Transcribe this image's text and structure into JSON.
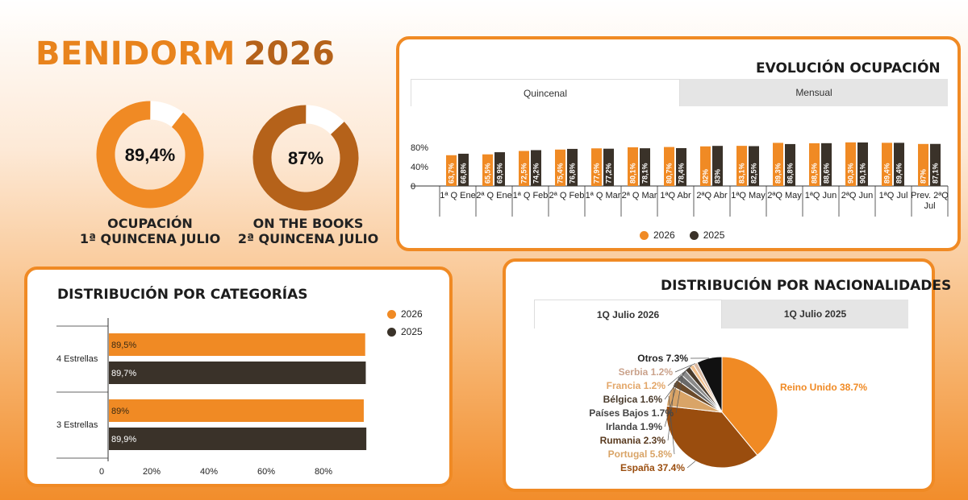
{
  "header": {
    "title": "BENIDORM",
    "year": "2026"
  },
  "colors": {
    "c2026": "#f08a24",
    "c2025": "#3a3229",
    "accent": "#f08a24"
  },
  "donuts": [
    {
      "value_label": "89,4%",
      "fraction": 0.894,
      "color": "#f08a24",
      "line1": "OCUPACIÓN",
      "line2": "1ª QUINCENA JULIO"
    },
    {
      "value_label": "87%",
      "fraction": 0.87,
      "color": "#b5621a",
      "line1": "ON THE BOOKS",
      "line2": "2ª QUINCENA JULIO"
    }
  ],
  "evolution": {
    "title": "EVOLUCIÓN OCUPACIÓN",
    "tabs": [
      "Quincenal",
      "Mensual"
    ],
    "legend": [
      "2026",
      "2025"
    ]
  },
  "categories_panel": {
    "title": "DISTRIBUCIÓN POR CATEGORÍAS",
    "legend": [
      "2026",
      "2025"
    ]
  },
  "nationalities_panel": {
    "title": "DISTRIBUCIÓN POR NACIONALIDADES",
    "tabs": [
      "1Q Julio 2026",
      "1Q Julio 2025"
    ]
  },
  "chart_data": [
    {
      "type": "bar",
      "title": "EVOLUCIÓN OCUPACIÓN",
      "categories": [
        "1ª Q Ene",
        "2ª Q Ene",
        "1ª Q Feb",
        "2ª Q Feb",
        "1ª Q Mar",
        "2ª Q Mar",
        "1ªQ Abr",
        "2ªQ Abr",
        "1ªQ May",
        "2ªQ May",
        "1ªQ Jun",
        "2ªQ Jun",
        "1ªQ Jul",
        "Prev. 2ªQ Jul"
      ],
      "series": [
        {
          "name": "2026",
          "values": [
            63.7,
            65.5,
            72.5,
            75.4,
            77.9,
            80.1,
            80.7,
            82,
            83.1,
            89.3,
            88.5,
            90.3,
            89.4,
            87
          ],
          "labels": [
            "63,7%",
            "65,5%",
            "72,5%",
            "75,4%",
            "77,9%",
            "80,1%",
            "80,7%",
            "82%",
            "83,1%",
            "89,3%",
            "88,5%",
            "90,3%",
            "89,4%",
            "87%"
          ]
        },
        {
          "name": "2025",
          "values": [
            66.8,
            69.9,
            74.2,
            76.8,
            77.2,
            78.1,
            78.4,
            83,
            82.5,
            86.8,
            88.6,
            90.1,
            89.4,
            87.1
          ],
          "labels": [
            "66,8%",
            "69,9%",
            "74,2%",
            "76,8%",
            "77,2%",
            "78,1%",
            "78,4%",
            "83%",
            "82,5%",
            "86,8%",
            "88,6%",
            "90,1%",
            "89,4%",
            "87,1%"
          ]
        }
      ],
      "yticks": [
        "0",
        "40%",
        "80%"
      ],
      "ylim": [
        0,
        100
      ]
    },
    {
      "type": "bar",
      "orientation": "horizontal",
      "title": "DISTRIBUCIÓN POR CATEGORÍAS",
      "categories": [
        "4 Estrellas",
        "3 Estrellas"
      ],
      "series": [
        {
          "name": "2026",
          "values": [
            89.5,
            89
          ],
          "labels": [
            "89,5%",
            "89%"
          ]
        },
        {
          "name": "2025",
          "values": [
            89.7,
            89.9
          ],
          "labels": [
            "89,7%",
            "89,9%"
          ]
        }
      ],
      "xticks": [
        "0",
        "20%",
        "40%",
        "60%",
        "80%"
      ],
      "xlim": [
        0,
        100
      ]
    },
    {
      "type": "pie",
      "title": "DISTRIBUCIÓN POR NACIONALIDADES",
      "slices": [
        {
          "label": "Reino Unido 38.7%",
          "value": 38.7,
          "color": "#f08a24",
          "text_color": "#f08a24"
        },
        {
          "label": "España 37.4%",
          "value": 37.4,
          "color": "#9a4d0e",
          "text_color": "#9a4d0e"
        },
        {
          "label": "Portugal 5.8%",
          "value": 5.8,
          "color": "#d9a467",
          "text_color": "#d9a467"
        },
        {
          "label": "Rumania 2.3%",
          "value": 2.3,
          "color": "#6b4a2a",
          "text_color": "#5a3b20"
        },
        {
          "label": "Irlanda 1.9%",
          "value": 1.9,
          "color": "#6a6a6a",
          "text_color": "#444444"
        },
        {
          "label": "Países Bajos 1.7%",
          "value": 1.7,
          "color": "#8a8a8a",
          "text_color": "#444444"
        },
        {
          "label": "Bélgica 1.6%",
          "value": 1.6,
          "color": "#4a3b2c",
          "text_color": "#4a3b2c"
        },
        {
          "label": "Francia 1.2%",
          "value": 1.2,
          "color": "#f2c18e",
          "text_color": "#e3a76a"
        },
        {
          "label": "Serbia 1.2%",
          "value": 1.2,
          "color": "#d8b7a0",
          "text_color": "#caa28b"
        },
        {
          "label": "Otros 7.3%",
          "value": 7.3,
          "color": "#111111",
          "text_color": "#222222"
        }
      ]
    }
  ]
}
